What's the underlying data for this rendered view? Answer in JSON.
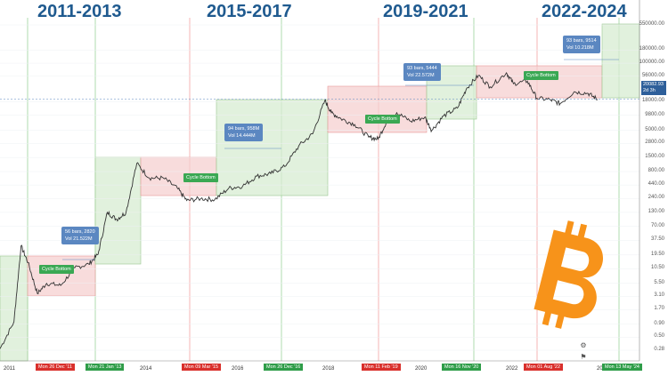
{
  "eras": [
    "2011-2013",
    "2015-2017",
    "2019-2021",
    "2022-2024"
  ],
  "y_axis_labels": [
    "550000.00",
    "180000.00",
    "100000.00",
    "56000.00",
    "18000.00",
    "9800.00",
    "5000.00",
    "2800.00",
    "1500.00",
    "800.00",
    "440.00",
    "240.00",
    "130.00",
    "70.00",
    "37.50",
    "19.50",
    "10.50",
    "5.50",
    "3.10",
    "1.70",
    "0.90",
    "0.50",
    "0.28"
  ],
  "x_axis_labels": [
    "2011",
    "2014",
    "2016",
    "2018",
    "2020",
    "2022",
    "20"
  ],
  "date_boxes": [
    {
      "text": "Mon 26 Dec '11",
      "color": "red"
    },
    {
      "text": "Mon 21 Jan '13",
      "color": "green"
    },
    {
      "text": "Mon 09 Mar '15",
      "color": "red"
    },
    {
      "text": "Mon 26 Dec '16",
      "color": "green"
    },
    {
      "text": "Mon 11 Feb '19",
      "color": "red"
    },
    {
      "text": "Mon 16 Nov '20",
      "color": "green"
    },
    {
      "text": "Mon 01 Aug '22",
      "color": "red"
    },
    {
      "text": "Mon 13 May '24",
      "color": "green"
    }
  ],
  "info_boxes": [
    {
      "line1": "56 bars, 2820",
      "line2": "Vol 21.522M"
    },
    {
      "line1": "94 bars, 958M",
      "line2": "Vol 14.444M"
    },
    {
      "line1": "93 bars, 5444",
      "line2": "Vol 22.572M"
    },
    {
      "line1": "93 bars, 9514",
      "line2": "Vol 10.218M"
    }
  ],
  "cycle_bottom_label": "Cycle Bottom",
  "price_tag": {
    "price": "20082.93",
    "time": "2d 3h"
  },
  "icons": [
    "bitcoin-logo",
    "settings-icon",
    "flag-icon"
  ],
  "colors": {
    "red_zone": "#f6d0d0",
    "green_zone": "#d7ecd2",
    "price_line": "#333333",
    "era_text": "#1f5a8f",
    "bitcoin": "#f7931a"
  },
  "chart_data": {
    "type": "line",
    "title": "",
    "xlabel": "",
    "ylabel": "",
    "y_scale": "log",
    "ylim": [
      0.28,
      550000
    ],
    "xlim": [
      2011.0,
      2024.7
    ],
    "series": [
      {
        "x": [
          2011.0,
          2011.3,
          2011.45,
          2011.6,
          2011.8,
          2012.0,
          2012.3,
          2012.6,
          2012.9,
          2013.1,
          2013.3,
          2013.5,
          2013.7,
          2013.93,
          2014.2,
          2014.5,
          2014.8,
          2015.0,
          2015.3,
          2015.6,
          2015.9,
          2016.2,
          2016.5,
          2016.8,
          2017.1,
          2017.4,
          2017.7,
          2017.96,
          2018.1,
          2018.3,
          2018.6,
          2018.9,
          2019.1,
          2019.3,
          2019.5,
          2019.8,
          2020.1,
          2020.25,
          2020.5,
          2020.8,
          2021.0,
          2021.25,
          2021.5,
          2021.85,
          2022.0,
          2022.3,
          2022.5,
          2022.8,
          2023.0,
          2023.3,
          2023.6,
          2023.8
        ],
        "y": [
          0.3,
          1.0,
          29,
          14,
          3.5,
          5.5,
          5,
          11,
          13,
          20,
          130,
          95,
          130,
          1150,
          600,
          600,
          380,
          220,
          240,
          230,
          380,
          420,
          650,
          730,
          1000,
          2500,
          4300,
          19000,
          11000,
          8500,
          6500,
          3700,
          3400,
          8000,
          11000,
          7500,
          9000,
          5000,
          9500,
          13500,
          33000,
          58000,
          35000,
          65000,
          40000,
          45000,
          21000,
          19500,
          16500,
          28000,
          26000,
          20000
        ]
      }
    ]
  }
}
